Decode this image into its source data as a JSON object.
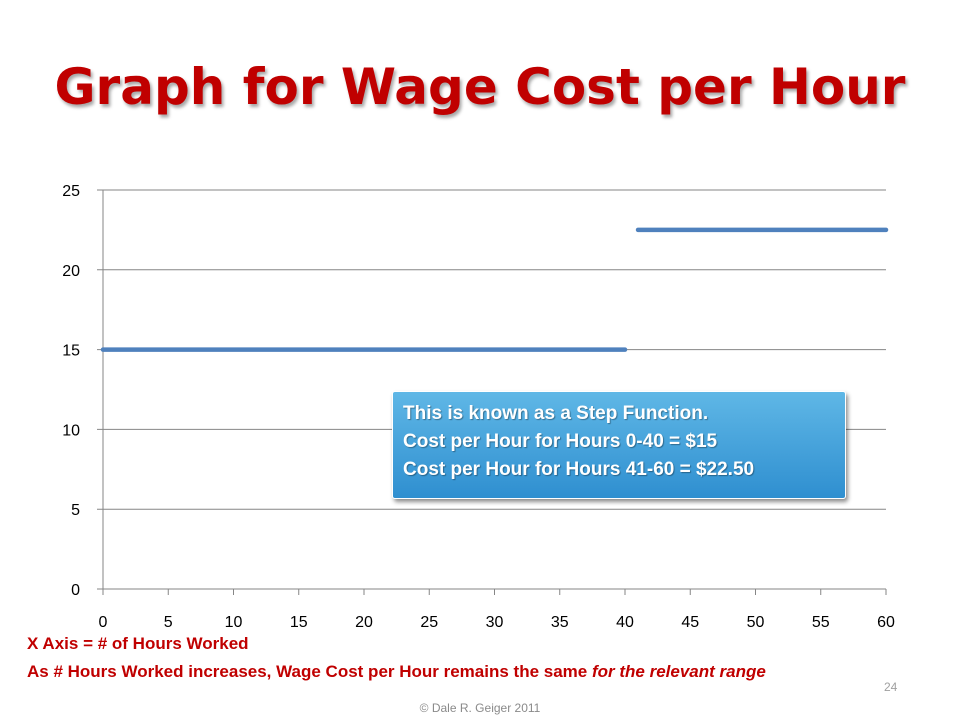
{
  "slide": {
    "title": "Graph for Wage Cost per Hour",
    "callout": [
      "This is known as a Step Function.",
      "Cost per Hour for Hours 0-40 = $15",
      "Cost per Hour for Hours 41-60 = $22.50"
    ],
    "note_line1": "X Axis = # of Hours Worked",
    "note_line2_main": "As # Hours Worked increases,  Wage Cost per Hour remains the same ",
    "note_line2_italic": "for the relevant range",
    "page_number": "24",
    "copyright": "© Dale R. Geiger 2011"
  },
  "chart_data": {
    "type": "line",
    "title": "",
    "xlabel": "",
    "ylabel": "",
    "xlim": [
      0,
      60
    ],
    "ylim": [
      0,
      25
    ],
    "x_ticks": [
      "0",
      "5",
      "10",
      "15",
      "20",
      "25",
      "30",
      "35",
      "40",
      "45",
      "50",
      "55",
      "60"
    ],
    "y_ticks": [
      "0",
      "5",
      "10",
      "15",
      "20",
      "25"
    ],
    "grid": "horizontal",
    "line_color": "#4f81bd",
    "series": [
      {
        "segments": [
          {
            "x": [
              0,
              40
            ],
            "y": [
              15,
              15
            ]
          },
          {
            "x": [
              41,
              60
            ],
            "y": [
              22.5,
              22.5
            ]
          }
        ]
      }
    ]
  }
}
